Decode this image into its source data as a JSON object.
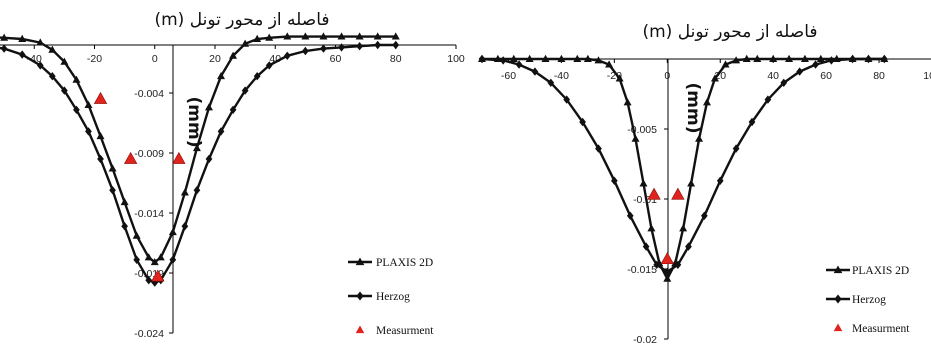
{
  "chart_data": [
    {
      "type": "line",
      "title": "فاصله از محور تونل (m)",
      "ylabel": "(mm)",
      "xlim": [
        -60,
        100
      ],
      "ylim": [
        -0.024,
        0
      ],
      "x_ticks": [
        -40,
        -20,
        0,
        20,
        40,
        60,
        80,
        100
      ],
      "x_tick_labels": [
        "-40",
        "-20",
        "0",
        "20",
        "40",
        "60",
        "80",
        "100"
      ],
      "y_ticks": [
        -0.004,
        -0.009,
        -0.014,
        -0.019,
        -0.024
      ],
      "y_tick_labels": [
        "-0.004",
        "-0.009",
        "-0.014",
        "-0.019",
        "-0.024"
      ],
      "grid": false,
      "legend_position": "bottom-right",
      "series": [
        {
          "name": "PLAXIS 2D",
          "marker": "triangle",
          "x": [
            -62,
            -56,
            -50,
            -44,
            -38,
            -34,
            -30,
            -26,
            -22,
            -18,
            -14,
            -10,
            -6,
            -2,
            0,
            2,
            6,
            10,
            14,
            18,
            22,
            26,
            30,
            34,
            38,
            44,
            50,
            56,
            62,
            68,
            74,
            80
          ],
          "y": [
            0.0007,
            0.0007,
            0.0006,
            0.0005,
            0.0002,
            -0.0004,
            -0.0014,
            -0.0029,
            -0.005,
            -0.0076,
            -0.0103,
            -0.0131,
            -0.0159,
            -0.0177,
            -0.0181,
            -0.0177,
            -0.0156,
            -0.0123,
            -0.0086,
            -0.0052,
            -0.0026,
            -0.0009,
            0.0001,
            0.0005,
            0.0006,
            0.0007,
            0.0007,
            0.0007,
            0.0007,
            0.0007,
            0.0007,
            0.0007
          ]
        },
        {
          "name": "Herzog",
          "marker": "diamond",
          "x": [
            -62,
            -56,
            -50,
            -44,
            -38,
            -34,
            -30,
            -26,
            -22,
            -18,
            -14,
            -10,
            -6,
            -2,
            0,
            2,
            6,
            10,
            14,
            18,
            22,
            26,
            30,
            34,
            38,
            44,
            50,
            56,
            62,
            68,
            74,
            80
          ],
          "y": [
            0.0,
            -0.0001,
            -0.0003,
            -0.0008,
            -0.0017,
            -0.0026,
            -0.0038,
            -0.0054,
            -0.0072,
            -0.0095,
            -0.0121,
            -0.0151,
            -0.0179,
            -0.0196,
            -0.0198,
            -0.0196,
            -0.0179,
            -0.0151,
            -0.0121,
            -0.0095,
            -0.0072,
            -0.0054,
            -0.0038,
            -0.0026,
            -0.0017,
            -0.0009,
            -0.0005,
            -0.0003,
            -0.0002,
            -0.0001,
            0.0,
            0.0
          ]
        },
        {
          "name": "Measurment",
          "marker": "triangle-red",
          "x": [
            -18,
            -8,
            8,
            1
          ],
          "y": [
            -0.0045,
            -0.0095,
            -0.0095,
            -0.0193
          ]
        }
      ]
    },
    {
      "type": "line",
      "title": "فاصله از محور تونل (m)",
      "ylabel": "(mm)",
      "xlim": [
        -70,
        100
      ],
      "ylim": [
        -0.02,
        0
      ],
      "x_ticks": [
        -60,
        -40,
        -20,
        0,
        20,
        40,
        60,
        80,
        100
      ],
      "x_tick_labels": [
        "-60",
        "-40",
        "-20",
        "0",
        "20",
        "40",
        "60",
        "80",
        "100"
      ],
      "y_ticks": [
        -0.005,
        -0.01,
        -0.015,
        -0.02
      ],
      "y_tick_labels": [
        "-0.005",
        "-0.01",
        "-0.015",
        "-0.02"
      ],
      "grid": false,
      "legend_position": "bottom-right",
      "series": [
        {
          "name": "PLAXIS 2D",
          "marker": "triangle",
          "x": [
            -70,
            -64,
            -58,
            -52,
            -46,
            -40,
            -34,
            -30,
            -26,
            -22,
            -18,
            -15,
            -12,
            -9,
            -6,
            -3,
            0,
            3,
            6,
            9,
            12,
            15,
            18,
            22,
            26,
            30,
            34,
            40,
            46,
            52,
            58,
            64,
            70,
            76,
            82
          ],
          "y": [
            0.0,
            0.0,
            0.0,
            0.0,
            0.0,
            0.0,
            0.0,
            0.0,
            -0.0001,
            -0.0004,
            -0.0014,
            -0.0031,
            -0.0057,
            -0.0089,
            -0.0121,
            -0.0146,
            -0.0157,
            -0.0146,
            -0.0121,
            -0.0089,
            -0.0057,
            -0.0031,
            -0.0014,
            -0.0004,
            -0.0001,
            0.0,
            0.0,
            0.0,
            0.0,
            0.0,
            0.0,
            0.0,
            0.0,
            0.0,
            0.0
          ]
        },
        {
          "name": "Herzog",
          "marker": "diamond",
          "x": [
            -70,
            -62,
            -56,
            -50,
            -44,
            -38,
            -32,
            -26,
            -20,
            -14,
            -8,
            -4,
            0,
            4,
            8,
            14,
            20,
            26,
            32,
            38,
            44,
            50,
            56,
            62,
            70,
            76,
            82
          ],
          "y": [
            0.0,
            -0.0001,
            -0.0004,
            -0.0009,
            -0.0017,
            -0.0029,
            -0.0045,
            -0.0064,
            -0.0087,
            -0.0112,
            -0.0134,
            -0.0147,
            -0.0152,
            -0.0147,
            -0.0134,
            -0.0112,
            -0.0087,
            -0.0064,
            -0.0045,
            -0.0029,
            -0.0017,
            -0.0009,
            -0.0004,
            -0.0001,
            0.0,
            0.0,
            0.0
          ]
        },
        {
          "name": "Measurment",
          "marker": "triangle-red",
          "x": [
            -5,
            4,
            0
          ],
          "y": [
            -0.0097,
            -0.0097,
            -0.0143
          ]
        }
      ]
    }
  ]
}
